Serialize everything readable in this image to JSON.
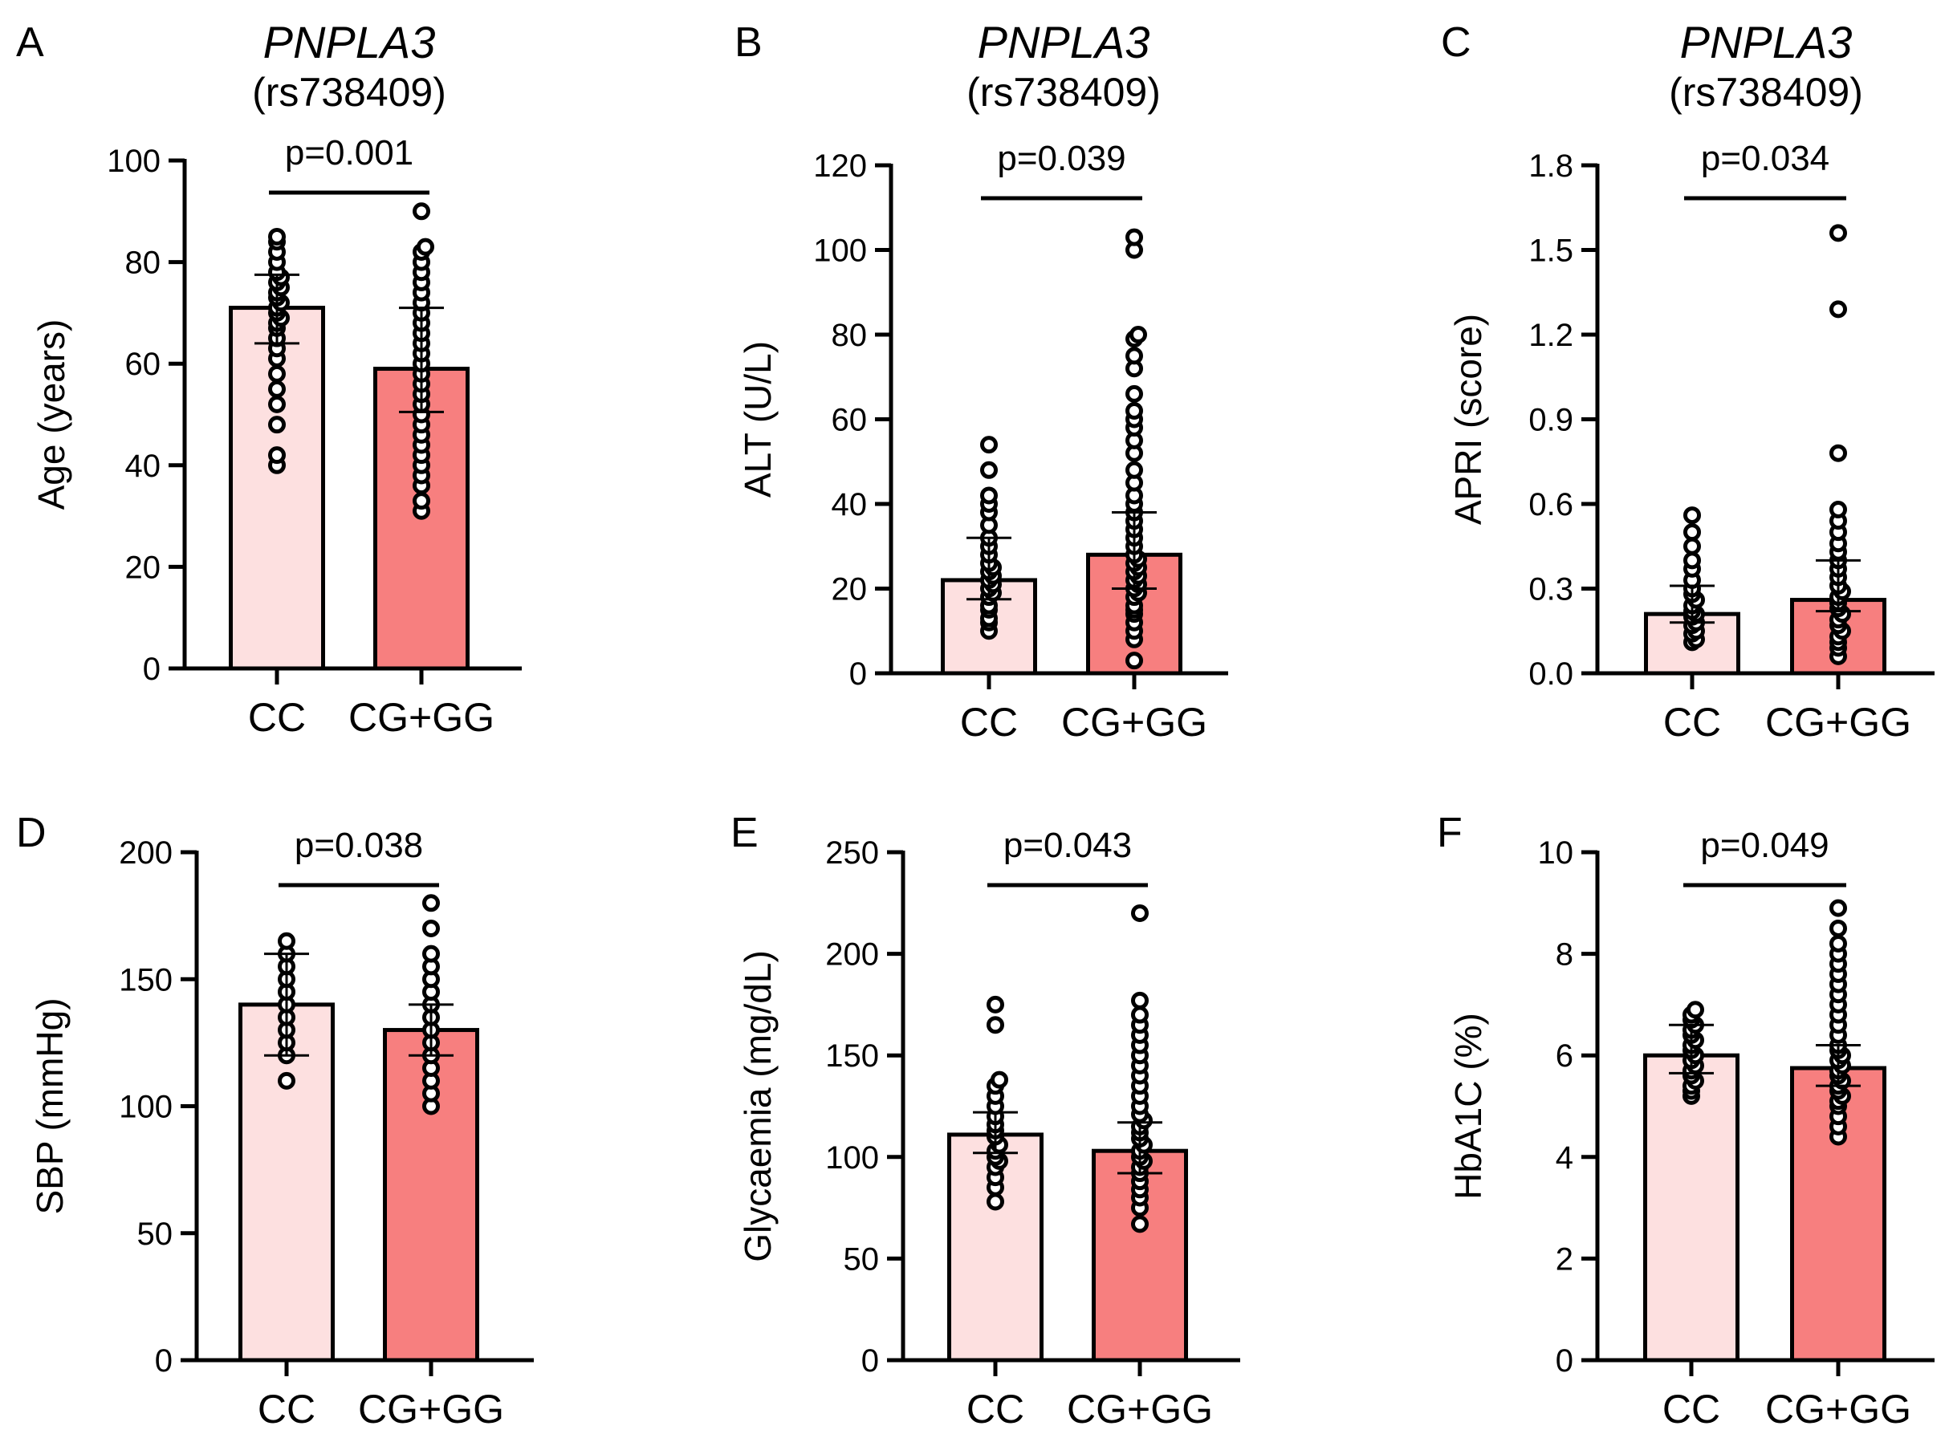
{
  "figure": {
    "description_name": "PNPLA3 rs738409 genotype comparison panels"
  },
  "colors": {
    "cc_fill": "#fde0e0",
    "gg_fill": "#f77f7f",
    "stroke": "#000000",
    "background": "#ffffff"
  },
  "chart_data": [
    {
      "panel": "A",
      "type": "bar",
      "title": "PNPLA3",
      "subtitle": "(rs738409)",
      "categories": [
        "CC",
        "CG+GG"
      ],
      "values": [
        71,
        59
      ],
      "error_low": [
        64,
        50.5
      ],
      "error_high": [
        77.5,
        71
      ],
      "ylabel": "Age (years)",
      "ylim": [
        0,
        100
      ],
      "yticks": [
        0,
        20,
        40,
        60,
        80,
        100
      ],
      "tick_decimals": 0,
      "pvalue": "p=0.001",
      "points": [
        [
          40,
          42,
          48,
          52,
          55,
          58,
          61,
          63,
          65,
          67,
          68,
          69,
          70,
          71,
          72,
          73,
          74,
          75,
          76,
          77,
          78,
          80,
          82,
          84,
          85
        ],
        [
          31,
          33,
          36,
          38,
          40,
          42,
          44,
          46,
          48,
          50,
          52,
          54,
          56,
          58,
          60,
          62,
          64,
          66,
          68,
          70,
          72,
          74,
          76,
          78,
          80,
          82,
          83,
          90
        ]
      ]
    },
    {
      "panel": "B",
      "type": "bar",
      "title": "PNPLA3",
      "subtitle": "(rs738409)",
      "categories": [
        "CC",
        "CG+GG"
      ],
      "values": [
        22,
        28
      ],
      "error_low": [
        17.5,
        20
      ],
      "error_high": [
        32,
        38
      ],
      "ylabel": "ALT (U/L)",
      "ylim": [
        0,
        120
      ],
      "yticks": [
        0,
        20,
        40,
        60,
        80,
        100,
        120
      ],
      "tick_decimals": 0,
      "pvalue": "p=0.039",
      "points": [
        [
          10,
          12,
          13,
          15,
          16,
          18,
          19,
          20,
          21,
          22,
          23,
          24,
          25,
          26,
          28,
          30,
          32,
          35,
          38,
          40,
          42,
          48,
          54
        ],
        [
          3,
          8,
          10,
          12,
          14,
          15,
          16,
          18,
          19,
          20,
          21,
          22,
          23,
          24,
          25,
          26,
          27,
          28,
          30,
          32,
          34,
          36,
          38,
          40,
          42,
          45,
          48,
          52,
          55,
          58,
          60,
          62,
          66,
          72,
          75,
          79,
          80,
          100,
          103
        ]
      ]
    },
    {
      "panel": "C",
      "type": "bar",
      "title": "PNPLA3",
      "subtitle": "(rs738409)",
      "categories": [
        "CC",
        "CG+GG"
      ],
      "values": [
        0.21,
        0.26
      ],
      "error_low": [
        0.18,
        0.22
      ],
      "error_high": [
        0.31,
        0.4
      ],
      "ylabel": "APRI (score)",
      "ylim": [
        0,
        1.8
      ],
      "yticks": [
        0,
        0.3,
        0.6,
        0.9,
        1.2,
        1.5,
        1.8
      ],
      "tick_decimals": 1,
      "pvalue": "p=0.034",
      "points": [
        [
          0.11,
          0.12,
          0.14,
          0.15,
          0.17,
          0.18,
          0.2,
          0.21,
          0.22,
          0.24,
          0.26,
          0.28,
          0.3,
          0.33,
          0.37,
          0.4,
          0.45,
          0.5,
          0.56
        ],
        [
          0.06,
          0.09,
          0.11,
          0.13,
          0.15,
          0.17,
          0.19,
          0.21,
          0.23,
          0.25,
          0.27,
          0.29,
          0.31,
          0.34,
          0.37,
          0.4,
          0.43,
          0.46,
          0.5,
          0.54,
          0.58,
          0.78,
          1.29,
          1.56
        ]
      ]
    },
    {
      "panel": "D",
      "type": "bar",
      "title": "",
      "subtitle": "",
      "categories": [
        "CC",
        "CG+GG"
      ],
      "values": [
        140,
        130
      ],
      "error_low": [
        120,
        120
      ],
      "error_high": [
        160,
        140
      ],
      "ylabel": "SBP (mmHg)",
      "ylim": [
        0,
        200
      ],
      "yticks": [
        0,
        50,
        100,
        150,
        200
      ],
      "tick_decimals": 0,
      "pvalue": "p=0.038",
      "points": [
        [
          110,
          120,
          125,
          130,
          135,
          140,
          145,
          150,
          155,
          160,
          165
        ],
        [
          100,
          105,
          110,
          115,
          120,
          125,
          130,
          135,
          140,
          145,
          150,
          155,
          160,
          170,
          180
        ]
      ]
    },
    {
      "panel": "E",
      "type": "bar",
      "title": "",
      "subtitle": "",
      "categories": [
        "CC",
        "CG+GG"
      ],
      "values": [
        111,
        103
      ],
      "error_low": [
        102,
        92
      ],
      "error_high": [
        122,
        117
      ],
      "ylabel": "Glycaemia (mg/dL)",
      "ylim": [
        0,
        250
      ],
      "yticks": [
        0,
        50,
        100,
        150,
        200,
        250
      ],
      "tick_decimals": 0,
      "pvalue": "p=0.043",
      "points": [
        [
          78,
          85,
          90,
          95,
          98,
          100,
          103,
          106,
          110,
          113,
          116,
          120,
          125,
          130,
          135,
          138,
          165,
          175
        ],
        [
          67,
          75,
          80,
          84,
          88,
          92,
          95,
          98,
          100,
          103,
          106,
          109,
          112,
          115,
          118,
          121,
          125,
          130,
          135,
          140,
          145,
          150,
          155,
          160,
          165,
          170,
          177,
          220
        ]
      ]
    },
    {
      "panel": "F",
      "type": "bar",
      "title": "",
      "subtitle": "",
      "categories": [
        "CC",
        "CG+GG"
      ],
      "values": [
        6.0,
        5.75
      ],
      "error_low": [
        5.65,
        5.4
      ],
      "error_high": [
        6.6,
        6.2
      ],
      "ylabel": "HbA1C (%)",
      "ylim": [
        0,
        10
      ],
      "yticks": [
        0,
        2,
        4,
        6,
        8,
        10
      ],
      "tick_decimals": 0,
      "pvalue": "p=0.049",
      "points": [
        [
          5.2,
          5.3,
          5.4,
          5.5,
          5.6,
          5.7,
          5.8,
          5.9,
          6.0,
          6.1,
          6.2,
          6.3,
          6.4,
          6.5,
          6.6,
          6.7,
          6.8,
          6.9
        ],
        [
          4.4,
          4.6,
          4.8,
          5.0,
          5.1,
          5.2,
          5.3,
          5.4,
          5.5,
          5.6,
          5.7,
          5.8,
          5.9,
          6.0,
          6.1,
          6.2,
          6.4,
          6.6,
          6.8,
          7.0,
          7.2,
          7.4,
          7.6,
          7.8,
          8.0,
          8.2,
          8.5,
          8.9
        ]
      ]
    }
  ]
}
